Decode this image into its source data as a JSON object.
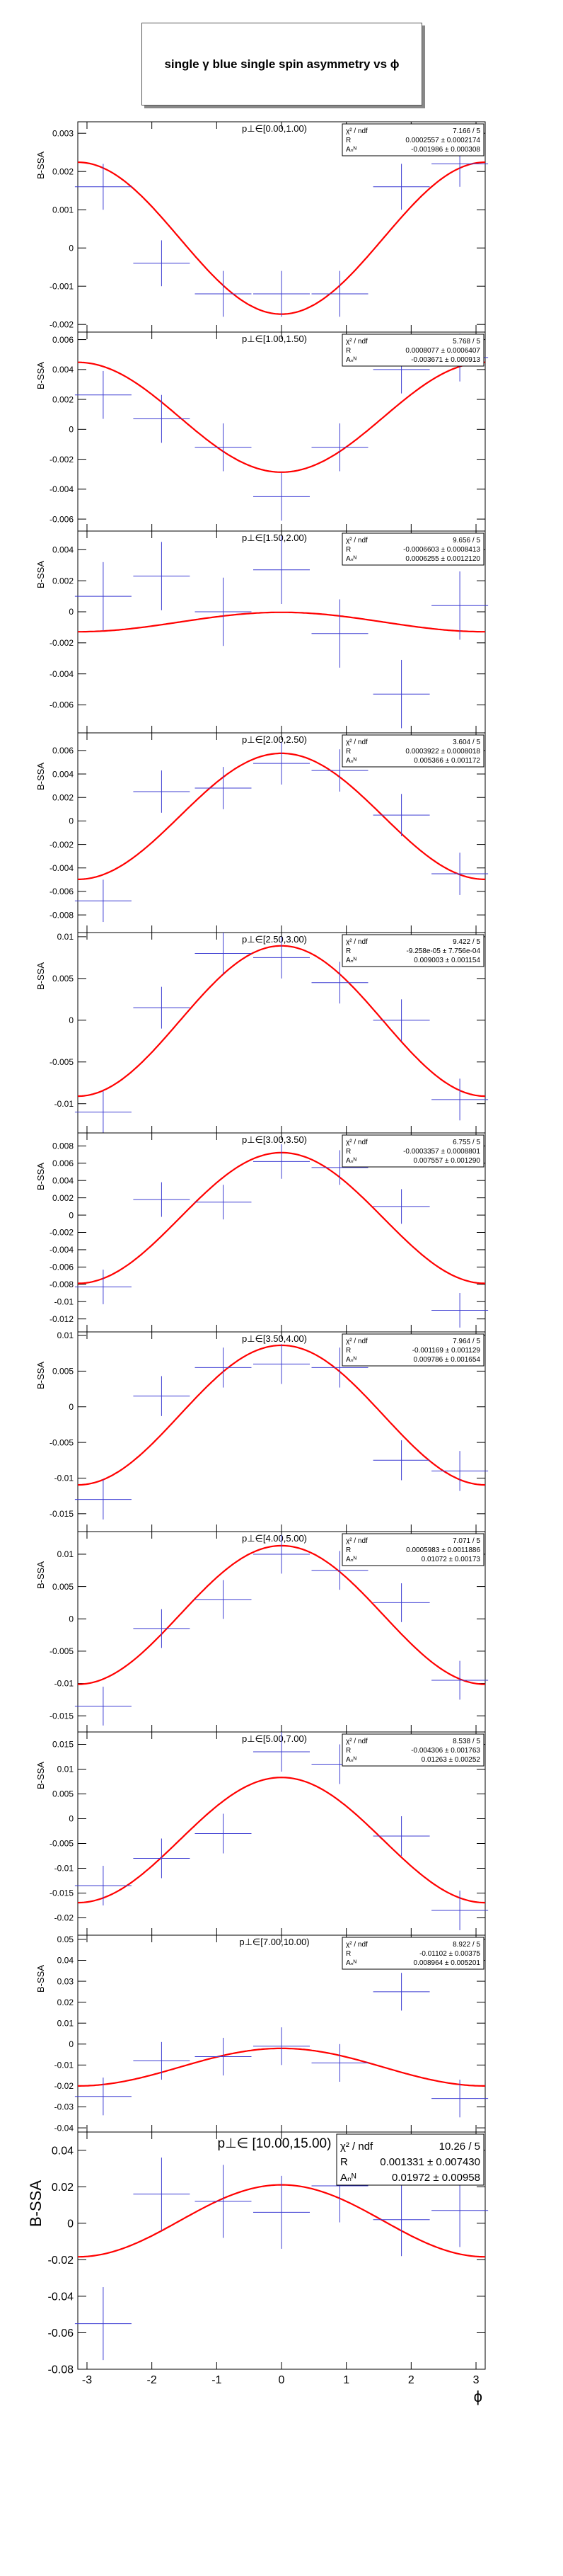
{
  "page": {
    "title": "single γ blue single spin asymmetry vs ϕ"
  },
  "colors": {
    "fit": "#ff0000",
    "points": "#3c3cd2",
    "frame": "#000000"
  },
  "chart_data": [
    {
      "type": "scatter",
      "panel_title": "p⊥∈[0.00,1.00)",
      "ylabel": "B-SSA",
      "ylim": [
        -0.0022,
        0.0033
      ],
      "yticks": [
        -0.002,
        -0.001,
        0,
        0.001,
        0.002,
        0.003
      ],
      "yticklabels": [
        "-0.002",
        "-0.001",
        "0",
        "0.001",
        "0.002",
        "0.003"
      ],
      "stats": [
        [
          "χ² / ndf",
          "7.166 / 5"
        ],
        [
          "R",
          "0.0002557 ± 0.0002174"
        ],
        [
          "Aₙᴺ",
          "-0.001986 ± 0.000308"
        ]
      ],
      "fit": {
        "R": 0.0002557,
        "A": -0.001986
      },
      "points": [
        {
          "x": -2.75,
          "y": 0.0016,
          "err": 0.0006
        },
        {
          "x": -1.85,
          "y": -0.0004,
          "err": 0.0006
        },
        {
          "x": -0.9,
          "y": -0.0012,
          "err": 0.0006
        },
        {
          "x": 0.0,
          "y": -0.0012,
          "err": 0.0006
        },
        {
          "x": 0.9,
          "y": -0.0012,
          "err": 0.0006
        },
        {
          "x": 1.85,
          "y": 0.0016,
          "err": 0.0006
        },
        {
          "x": 2.75,
          "y": 0.0022,
          "err": 0.0006
        }
      ]
    },
    {
      "type": "scatter",
      "panel_title": "p⊥∈[1.00,1.50)",
      "ylabel": "B-SSA",
      "ylim": [
        -0.0068,
        0.0065
      ],
      "yticks": [
        -0.006,
        -0.004,
        -0.002,
        0,
        0.002,
        0.004,
        0.006
      ],
      "yticklabels": [
        "-0.006",
        "-0.004",
        "-0.002",
        "0",
        "0.002",
        "0.004",
        "0.006"
      ],
      "stats": [
        [
          "χ² / ndf",
          "5.768 / 5"
        ],
        [
          "R",
          "0.0008077 ± 0.0006407"
        ],
        [
          "Aₙᴺ",
          "-0.003671 ± 0.000913"
        ]
      ],
      "fit": {
        "R": 0.0008077,
        "A": -0.003671
      },
      "points": [
        {
          "x": -2.75,
          "y": 0.0023,
          "err": 0.0016
        },
        {
          "x": -1.85,
          "y": 0.0007,
          "err": 0.0016
        },
        {
          "x": -0.9,
          "y": -0.0012,
          "err": 0.0016
        },
        {
          "x": 0.0,
          "y": -0.0045,
          "err": 0.0016
        },
        {
          "x": 0.9,
          "y": -0.0012,
          "err": 0.0016
        },
        {
          "x": 1.85,
          "y": 0.004,
          "err": 0.0016
        },
        {
          "x": 2.75,
          "y": 0.0048,
          "err": 0.0016
        }
      ]
    },
    {
      "type": "scatter",
      "panel_title": "p⊥∈[1.50,2.00)",
      "ylabel": "B-SSA",
      "ylim": [
        -0.0078,
        0.0052
      ],
      "yticks": [
        -0.006,
        -0.004,
        -0.002,
        0,
        0.002,
        0.004
      ],
      "yticklabels": [
        "-0.006",
        "-0.004",
        "-0.002",
        "0",
        "0.002",
        "0.004"
      ],
      "stats": [
        [
          "χ² / ndf",
          "9.656 / 5"
        ],
        [
          "R",
          "-0.0006603 ± 0.0008413"
        ],
        [
          "Aₙᴺ",
          "0.0006255 ± 0.0012120"
        ]
      ],
      "fit": {
        "R": -0.0006603,
        "A": 0.0006255
      },
      "points": [
        {
          "x": -2.75,
          "y": 0.001,
          "err": 0.0022
        },
        {
          "x": -1.85,
          "y": 0.0023,
          "err": 0.0022
        },
        {
          "x": -0.9,
          "y": 0.0,
          "err": 0.0022
        },
        {
          "x": 0.0,
          "y": 0.0027,
          "err": 0.0022
        },
        {
          "x": 0.9,
          "y": -0.0014,
          "err": 0.0022
        },
        {
          "x": 1.85,
          "y": -0.0053,
          "err": 0.0022
        },
        {
          "x": 2.75,
          "y": 0.0004,
          "err": 0.0022
        }
      ]
    },
    {
      "type": "scatter",
      "panel_title": "p⊥∈[2.00,2.50)",
      "ylabel": "B-SSA",
      "ylim": [
        -0.0095,
        0.0075
      ],
      "yticks": [
        -0.008,
        -0.006,
        -0.004,
        -0.002,
        0,
        0.002,
        0.004,
        0.006
      ],
      "yticklabels": [
        "-0.008",
        "-0.006",
        "-0.004",
        "-0.002",
        "0",
        "0.002",
        "0.004",
        "0.006"
      ],
      "stats": [
        [
          "χ² / ndf",
          "3.604 / 5"
        ],
        [
          "R",
          "0.0003922 ± 0.0008018"
        ],
        [
          "Aₙᴺ",
          "0.005366 ± 0.001172"
        ]
      ],
      "fit": {
        "R": 0.0003922,
        "A": 0.005366
      },
      "points": [
        {
          "x": -2.75,
          "y": -0.0068,
          "err": 0.0018
        },
        {
          "x": -1.85,
          "y": 0.0025,
          "err": 0.0018
        },
        {
          "x": -0.9,
          "y": 0.0028,
          "err": 0.0018
        },
        {
          "x": 0.0,
          "y": 0.0049,
          "err": 0.0018
        },
        {
          "x": 0.9,
          "y": 0.0043,
          "err": 0.0018
        },
        {
          "x": 1.85,
          "y": 0.0005,
          "err": 0.0018
        },
        {
          "x": 2.75,
          "y": -0.0045,
          "err": 0.0018
        }
      ]
    },
    {
      "type": "scatter",
      "panel_title": "p⊥∈[2.50,3.00)",
      "ylabel": "B-SSA",
      "ylim": [
        -0.0135,
        0.0105
      ],
      "yticks": [
        -0.01,
        -0.005,
        0,
        0.005,
        0.01
      ],
      "yticklabels": [
        "-0.01",
        "-0.005",
        "0",
        "0.005",
        "0.01"
      ],
      "stats": [
        [
          "χ² / ndf",
          "9.422 / 5"
        ],
        [
          "R",
          "-9.258e-05 ± 7.756e-04"
        ],
        [
          "Aₙᴺ",
          "0.009003 ± 0.001154"
        ]
      ],
      "fit": {
        "R": -9.258e-05,
        "A": 0.009003
      },
      "points": [
        {
          "x": -2.75,
          "y": -0.011,
          "err": 0.0025
        },
        {
          "x": -1.85,
          "y": 0.0015,
          "err": 0.0025
        },
        {
          "x": -0.9,
          "y": 0.008,
          "err": 0.0025
        },
        {
          "x": 0.0,
          "y": 0.0075,
          "err": 0.0025
        },
        {
          "x": 0.9,
          "y": 0.0045,
          "err": 0.0025
        },
        {
          "x": 1.85,
          "y": 0.0,
          "err": 0.0025
        },
        {
          "x": 2.75,
          "y": -0.0095,
          "err": 0.0025
        }
      ]
    },
    {
      "type": "scatter",
      "panel_title": "p⊥∈[3.00,3.50)",
      "ylabel": "B-SSA",
      "ylim": [
        -0.0135,
        0.0095
      ],
      "yticks": [
        -0.012,
        -0.01,
        -0.008,
        -0.006,
        -0.004,
        -0.002,
        0,
        0.002,
        0.004,
        0.006,
        0.008
      ],
      "yticklabels": [
        "-0.012",
        "-0.01",
        "-0.008",
        "-0.006",
        "-0.004",
        "-0.002",
        "0",
        "0.002",
        "0.004",
        "0.006",
        "0.008"
      ],
      "stats": [
        [
          "χ² / ndf",
          "6.755 / 5"
        ],
        [
          "R",
          "-0.0003357 ± 0.0008801"
        ],
        [
          "Aₙᴺ",
          "0.007557 ± 0.001290"
        ]
      ],
      "fit": {
        "R": -0.0003357,
        "A": 0.007557
      },
      "points": [
        {
          "x": -2.75,
          "y": -0.0083,
          "err": 0.002
        },
        {
          "x": -1.85,
          "y": 0.0018,
          "err": 0.002
        },
        {
          "x": -0.9,
          "y": 0.0015,
          "err": 0.002
        },
        {
          "x": 0.0,
          "y": 0.0062,
          "err": 0.002
        },
        {
          "x": 0.9,
          "y": 0.0055,
          "err": 0.002
        },
        {
          "x": 1.85,
          "y": 0.001,
          "err": 0.002
        },
        {
          "x": 2.75,
          "y": -0.011,
          "err": 0.002
        }
      ]
    },
    {
      "type": "scatter",
      "panel_title": "p⊥∈[3.50,4.00)",
      "ylabel": "B-SSA",
      "ylim": [
        -0.0175,
        0.0105
      ],
      "yticks": [
        -0.015,
        -0.01,
        -0.005,
        0,
        0.005,
        0.01
      ],
      "yticklabels": [
        "-0.015",
        "-0.01",
        "-0.005",
        "0",
        "0.005",
        "0.01"
      ],
      "stats": [
        [
          "χ² / ndf",
          "7.964 / 5"
        ],
        [
          "R",
          "-0.001169 ± 0.001129"
        ],
        [
          "Aₙᴺ",
          "0.009786 ± 0.001654"
        ]
      ],
      "fit": {
        "R": -0.001169,
        "A": 0.009786
      },
      "points": [
        {
          "x": -2.75,
          "y": -0.013,
          "err": 0.0028
        },
        {
          "x": -1.85,
          "y": 0.0015,
          "err": 0.0028
        },
        {
          "x": -0.9,
          "y": 0.0055,
          "err": 0.0028
        },
        {
          "x": 0.0,
          "y": 0.006,
          "err": 0.0028
        },
        {
          "x": 0.9,
          "y": 0.0055,
          "err": 0.0028
        },
        {
          "x": 1.85,
          "y": -0.0075,
          "err": 0.0028
        },
        {
          "x": 2.75,
          "y": -0.009,
          "err": 0.0028
        }
      ]
    },
    {
      "type": "scatter",
      "panel_title": "p⊥∈[4.00,5.00)",
      "ylabel": "B-SSA",
      "ylim": [
        -0.0175,
        0.0135
      ],
      "yticks": [
        -0.015,
        -0.01,
        -0.005,
        0,
        0.005,
        0.01
      ],
      "yticklabels": [
        "-0.015",
        "-0.01",
        "-0.005",
        "0",
        "0.005",
        "0.01"
      ],
      "stats": [
        [
          "χ² / ndf",
          "7.071 / 5"
        ],
        [
          "R",
          "0.0005983 ± 0.0011886"
        ],
        [
          "Aₙᴺ",
          "0.01072 ± 0.00173"
        ]
      ],
      "fit": {
        "R": 0.0005983,
        "A": 0.01072
      },
      "points": [
        {
          "x": -2.75,
          "y": -0.0135,
          "err": 0.003
        },
        {
          "x": -1.85,
          "y": -0.0015,
          "err": 0.003
        },
        {
          "x": -0.9,
          "y": 0.003,
          "err": 0.003
        },
        {
          "x": 0.0,
          "y": 0.01,
          "err": 0.003
        },
        {
          "x": 0.9,
          "y": 0.0075,
          "err": 0.003
        },
        {
          "x": 1.85,
          "y": 0.0025,
          "err": 0.003
        },
        {
          "x": 2.75,
          "y": -0.0095,
          "err": 0.003
        }
      ]
    },
    {
      "type": "scatter",
      "panel_title": "p⊥∈[5.00,7.00)",
      "ylabel": "B-SSA",
      "ylim": [
        -0.0235,
        0.0175
      ],
      "yticks": [
        -0.02,
        -0.015,
        -0.01,
        -0.005,
        0,
        0.005,
        0.01,
        0.015
      ],
      "yticklabels": [
        "-0.02",
        "-0.015",
        "-0.01",
        "-0.005",
        "0",
        "0.005",
        "0.01",
        "0.015"
      ],
      "stats": [
        [
          "χ² / ndf",
          "8.538 / 5"
        ],
        [
          "R",
          "-0.004306 ± 0.001763"
        ],
        [
          "Aₙᴺ",
          "0.01263 ± 0.00252"
        ]
      ],
      "fit": {
        "R": -0.004306,
        "A": 0.01263
      },
      "points": [
        {
          "x": -2.75,
          "y": -0.0135,
          "err": 0.004
        },
        {
          "x": -1.85,
          "y": -0.008,
          "err": 0.004
        },
        {
          "x": -0.9,
          "y": -0.003,
          "err": 0.004
        },
        {
          "x": 0.0,
          "y": 0.0135,
          "err": 0.004
        },
        {
          "x": 0.9,
          "y": 0.011,
          "err": 0.004
        },
        {
          "x": 1.85,
          "y": -0.0035,
          "err": 0.004
        },
        {
          "x": 2.75,
          "y": -0.0185,
          "err": 0.004
        }
      ]
    },
    {
      "type": "scatter",
      "panel_title": "p⊥∈[7.00,10.00)",
      "ylabel": "B-SSA",
      "ylim": [
        -0.042,
        0.052
      ],
      "yticks": [
        -0.04,
        -0.03,
        -0.02,
        -0.01,
        0,
        0.01,
        0.02,
        0.03,
        0.04,
        0.05
      ],
      "yticklabels": [
        "-0.04",
        "-0.03",
        "-0.02",
        "-0.01",
        "0",
        "0.01",
        "0.02",
        "0.03",
        "0.04",
        "0.05"
      ],
      "stats": [
        [
          "χ² / ndf",
          "8.922 / 5"
        ],
        [
          "R",
          "-0.01102 ± 0.00375"
        ],
        [
          "Aₙᴺ",
          "0.008964 ± 0.005201"
        ]
      ],
      "fit": {
        "R": -0.01102,
        "A": 0.008964
      },
      "points": [
        {
          "x": -2.75,
          "y": -0.025,
          "err": 0.009
        },
        {
          "x": -1.85,
          "y": -0.008,
          "err": 0.009
        },
        {
          "x": -0.9,
          "y": -0.006,
          "err": 0.009
        },
        {
          "x": 0.0,
          "y": -0.001,
          "err": 0.009
        },
        {
          "x": 0.9,
          "y": -0.009,
          "err": 0.009
        },
        {
          "x": 1.85,
          "y": 0.025,
          "err": 0.009
        },
        {
          "x": 2.75,
          "y": -0.026,
          "err": 0.009
        }
      ]
    },
    {
      "type": "scatter",
      "panel_title": "p⊥∈ [10.00,15.00)",
      "ylabel": "B-SSA",
      "xlabel": "ϕ",
      "ylim": [
        -0.08,
        0.05
      ],
      "yticks": [
        -0.08,
        -0.06,
        -0.04,
        -0.02,
        0,
        0.02,
        0.04
      ],
      "yticklabels": [
        "-0.08",
        "-0.06",
        "-0.04",
        "-0.02",
        "0",
        "0.02",
        "0.04"
      ],
      "xticks": [
        -3,
        -2,
        -1,
        0,
        1,
        2,
        3
      ],
      "xticklabels": [
        "-3",
        "-2",
        "-1",
        "0",
        "1",
        "2",
        "3"
      ],
      "stats": [
        [
          "χ² / ndf",
          "10.26 / 5"
        ],
        [
          "R",
          "0.001331 ± 0.007430"
        ],
        [
          "Aₙᴺ",
          "0.01972 ± 0.00958"
        ]
      ],
      "fit": {
        "R": 0.001331,
        "A": 0.01972
      },
      "points": [
        {
          "x": -2.75,
          "y": -0.055,
          "err": 0.02
        },
        {
          "x": -1.85,
          "y": 0.016,
          "err": 0.02
        },
        {
          "x": -0.9,
          "y": 0.012,
          "err": 0.02
        },
        {
          "x": 0.0,
          "y": 0.006,
          "err": 0.02
        },
        {
          "x": 0.9,
          "y": 0.0205,
          "err": 0.02
        },
        {
          "x": 1.85,
          "y": 0.002,
          "err": 0.02
        },
        {
          "x": 2.75,
          "y": 0.007,
          "err": 0.02
        }
      ]
    }
  ]
}
